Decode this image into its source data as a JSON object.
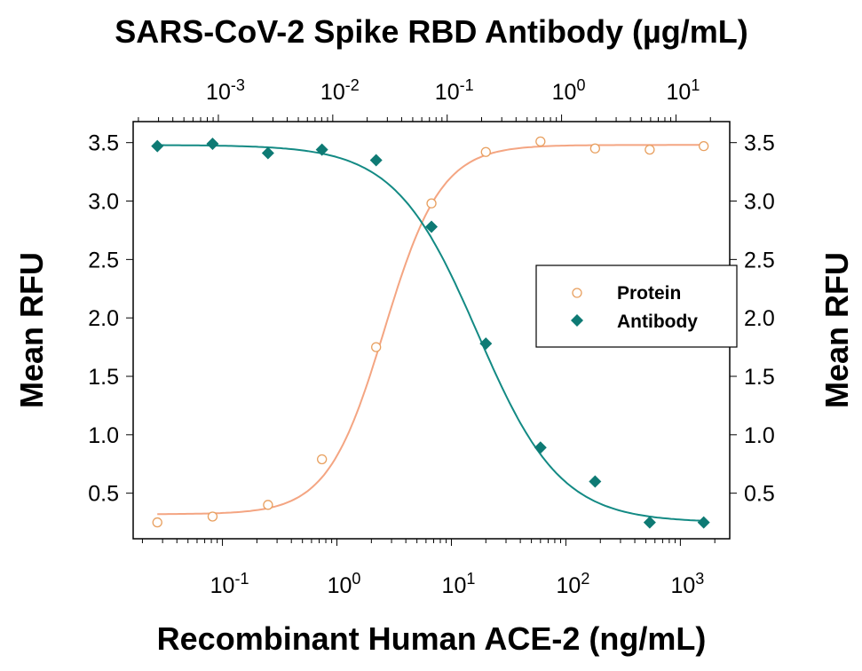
{
  "chart_data": {
    "type": "scatter",
    "top_title": "SARS-CoV-2 Spike RBD Antibody (µg/mL)",
    "xlabel": "Recombinant Human ACE-2 (ng/mL)",
    "ylabel": "Mean RFU",
    "ylabel_right": "Mean RFU",
    "xscale": "log",
    "xlim": [
      0.0166,
      2700
    ],
    "top_xlim": [
      0.00018,
      29.5
    ],
    "ylim": [
      0.11,
      3.68
    ],
    "x_ticks": [
      {
        "exp": "-1",
        "base": "10",
        "value": 0.1
      },
      {
        "exp": "0",
        "base": "10",
        "value": 1
      },
      {
        "exp": "1",
        "base": "10",
        "value": 10
      },
      {
        "exp": "2",
        "base": "10",
        "value": 100
      },
      {
        "exp": "3",
        "base": "10",
        "value": 1000
      }
    ],
    "top_x_ticks": [
      {
        "exp": "-3",
        "base": "10",
        "value": 0.001
      },
      {
        "exp": "-2",
        "base": "10",
        "value": 0.01
      },
      {
        "exp": "-1",
        "base": "10",
        "value": 0.1
      },
      {
        "exp": "0",
        "base": "10",
        "value": 1
      },
      {
        "exp": "1",
        "base": "10",
        "value": 10
      }
    ],
    "y_ticks": [
      "0.5",
      "1.0",
      "1.5",
      "2.0",
      "2.5",
      "3.0",
      "3.5"
    ],
    "grid": false,
    "legend_position": "right",
    "series": [
      {
        "name": "Protein",
        "marker": "open-circle",
        "color": "#e8a060",
        "line_color": "#f4a582",
        "x": [
          0.027,
          0.082,
          0.25,
          0.74,
          2.2,
          6.7,
          20,
          60,
          180,
          540,
          1600
        ],
        "y": [
          0.25,
          0.3,
          0.4,
          0.79,
          1.75,
          2.98,
          3.42,
          3.51,
          3.45,
          3.44,
          3.47
        ],
        "fit": {
          "bottom": 0.32,
          "top": 3.48,
          "ec50": 2.6,
          "hill": 1.75
        }
      },
      {
        "name": "Antibody",
        "marker": "filled-diamond",
        "color": "#0e7a74",
        "line_color": "#138a84",
        "x": [
          0.027,
          0.082,
          0.25,
          0.74,
          2.2,
          6.7,
          20,
          60,
          180,
          540,
          1600
        ],
        "y": [
          3.47,
          3.49,
          3.41,
          3.44,
          3.35,
          2.78,
          1.78,
          0.89,
          0.6,
          0.25,
          0.25
        ],
        "fit": {
          "bottom": 0.25,
          "top": 3.48,
          "ec50": 17,
          "hill": 1.2
        }
      }
    ]
  }
}
